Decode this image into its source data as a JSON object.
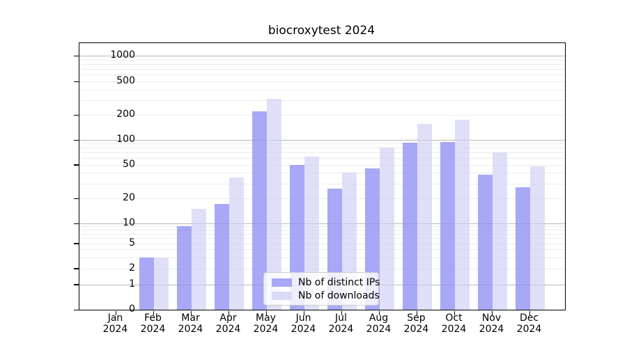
{
  "figure": {
    "title": "biocroxytest 2024",
    "background_color": "#ffffff"
  },
  "legend": {
    "items": [
      {
        "label": "Nb of distinct IPs",
        "swatch_color": "#a8a8f6"
      },
      {
        "label": "Nb of downloads",
        "swatch_color": "#dadaf8"
      }
    ]
  },
  "chart_data": {
    "type": "bar",
    "title": "biocroxytest 2024",
    "categories": [
      "Jan 2024",
      "Feb 2024",
      "Mar 2024",
      "Apr 2024",
      "May 2024",
      "Jun 2024",
      "Jul 2024",
      "Aug 2024",
      "Sep 2024",
      "Oct 2024",
      "Nov 2024",
      "Dec 2024"
    ],
    "x_tick_months": [
      "Jan",
      "Feb",
      "Mar",
      "Apr",
      "May",
      "Jun",
      "Jul",
      "Aug",
      "Sep",
      "Oct",
      "Nov",
      "Dec"
    ],
    "x_tick_year": "2024",
    "series": [
      {
        "name": "Nb of distinct IPs",
        "color": "rgba(143, 143, 244, 0.78)",
        "values": [
          0,
          3,
          9,
          17,
          220,
          50,
          26,
          45,
          92,
          95,
          38,
          27
        ]
      },
      {
        "name": "Nb of downloads",
        "color": "rgba(206, 206, 245, 0.65)",
        "values": [
          0,
          3,
          15,
          35,
          310,
          63,
          40,
          80,
          155,
          175,
          70,
          48
        ]
      }
    ],
    "xlabel": "",
    "ylabel": "",
    "yticks": [
      0,
      1,
      2,
      5,
      10,
      20,
      50,
      100,
      200,
      500,
      1000
    ],
    "ylim": [
      0,
      1400
    ],
    "yscale": "log-with-zero",
    "grid": "horizontal major (decades, darker) + minor (light)",
    "legend_position": "lower center",
    "bar_layout": "grouped pairs, side by side, no gap within pair"
  }
}
